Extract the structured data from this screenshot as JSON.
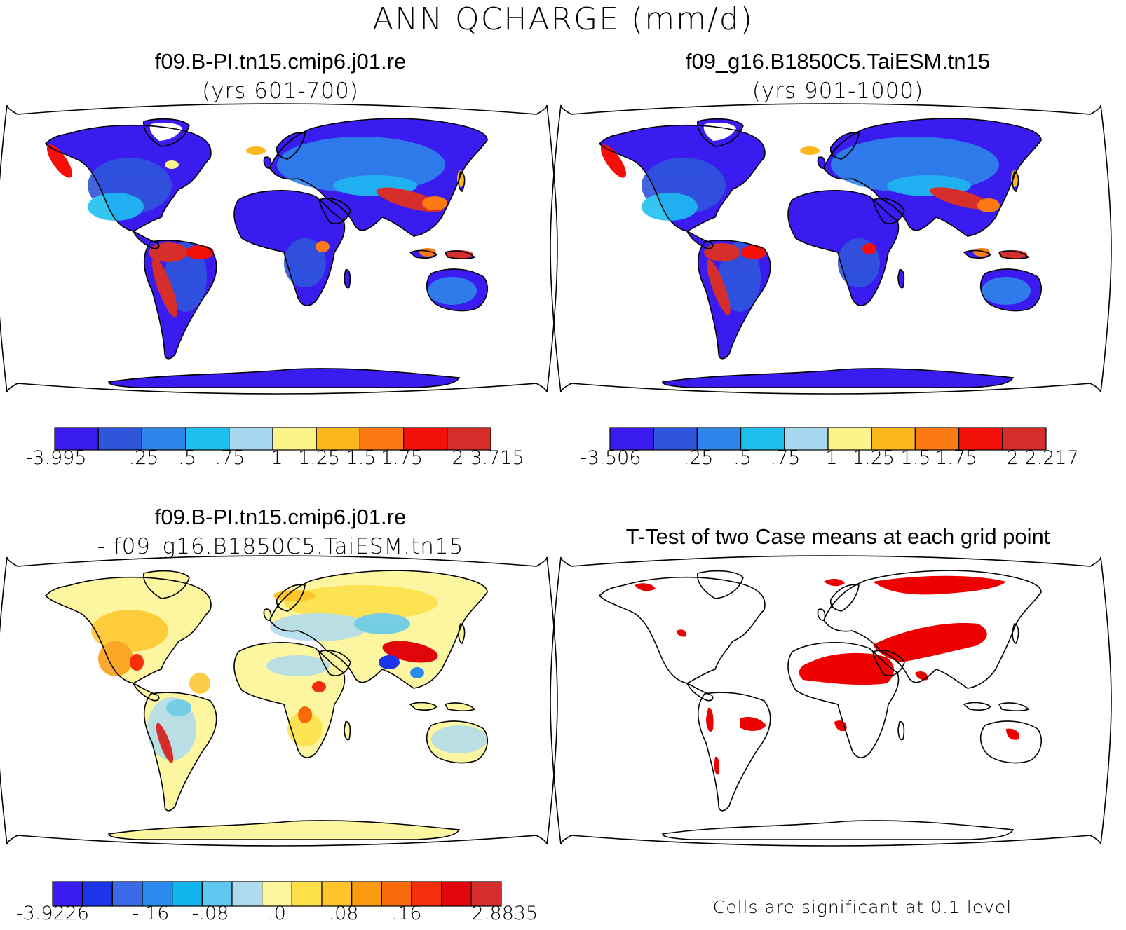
{
  "figure": {
    "title": "ANN QCHARGE (mm/d)"
  },
  "panels": [
    {
      "id": "case1",
      "title": "f09.B-PI.tn15.cmip6.j01.re",
      "subtitle": "(yrs 601-700)"
    },
    {
      "id": "case2",
      "title": "f09_g16.B1850C5.TaiESM.tn15",
      "subtitle": "(yrs 901-1000)"
    },
    {
      "id": "diff",
      "title": "f09.B-PI.tn15.cmip6.j01.re",
      "subtitle": "- f09_g16.B1850C5.TaiESM.tn15"
    },
    {
      "id": "ttest",
      "title": "T-Test of two Case means at each grid point",
      "note": "Cells are significant at 0.1 level"
    }
  ],
  "colorbars": [
    {
      "id": "case1-colorbar",
      "colors": [
        "#3a1cf0",
        "#2f55db",
        "#2f86ea",
        "#1ec0f0",
        "#a8d8ef",
        "#fbf48a",
        "#fbb81c",
        "#fb7a12",
        "#f4100a",
        "#d62e2b"
      ],
      "labels": [
        "-3.995",
        ".25",
        ".5",
        ".75",
        "1",
        "1.25",
        "1.5",
        "1.75",
        "2",
        "3.715"
      ]
    },
    {
      "id": "case2-colorbar",
      "colors": [
        "#3a1cf0",
        "#2f55db",
        "#2f86ea",
        "#1ec0f0",
        "#a8d8ef",
        "#fbf48a",
        "#fbb81c",
        "#fb7a12",
        "#f4100a",
        "#d62e2b"
      ],
      "labels": [
        "-3.506",
        ".25",
        ".5",
        ".75",
        "1",
        "1.25",
        "1.5",
        "1.75",
        "2",
        "2.217"
      ]
    },
    {
      "id": "diff-colorbar",
      "colors": [
        "#3a1cf0",
        "#1c34ea",
        "#3a6ae6",
        "#2a8aee",
        "#12b6ee",
        "#5ec6f0",
        "#aedaef",
        "#fdf6a0",
        "#fde047",
        "#fdc52a",
        "#f99a0f",
        "#f96a0b",
        "#f62e0d",
        "#e0060c",
        "#d52d2c"
      ],
      "labels": [
        "-3.9226",
        "-.16",
        "-.08",
        ".0",
        ".08",
        ".16",
        "2.8835"
      ]
    }
  ],
  "ttest_colors": {
    "significant": "#ee0000"
  }
}
